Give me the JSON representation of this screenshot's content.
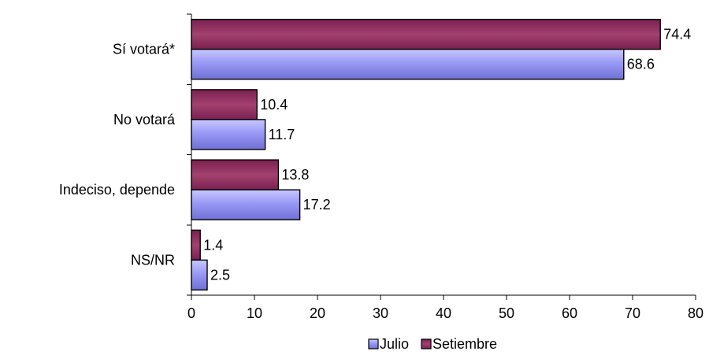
{
  "chart_data": {
    "type": "bar",
    "orientation": "horizontal",
    "categories": [
      "Sí votará*",
      "No votará",
      "Indeciso, depende",
      "NS/NR"
    ],
    "series": [
      {
        "name": "Julio",
        "values": [
          68.6,
          11.7,
          17.2,
          2.5
        ],
        "color": "#8f8fef"
      },
      {
        "name": "Setiembre",
        "values": [
          74.4,
          10.4,
          13.8,
          1.4
        ],
        "color": "#993366"
      }
    ],
    "data_labels": {
      "Julio": [
        "68.6",
        "11.7",
        "17.2",
        "2.5"
      ],
      "Setiembre": [
        "74.4",
        "10.4",
        "13.8",
        "1.4"
      ]
    },
    "xticks": [
      "0",
      "10",
      "20",
      "30",
      "40",
      "50",
      "60",
      "70",
      "80"
    ],
    "xlim": [
      0,
      80
    ],
    "title": "",
    "xlabel": "",
    "ylabel": "",
    "grid": false,
    "legend_position": "bottom"
  },
  "legend": {
    "julio_label": "Julio",
    "setiembre_label": "Setiembre"
  }
}
